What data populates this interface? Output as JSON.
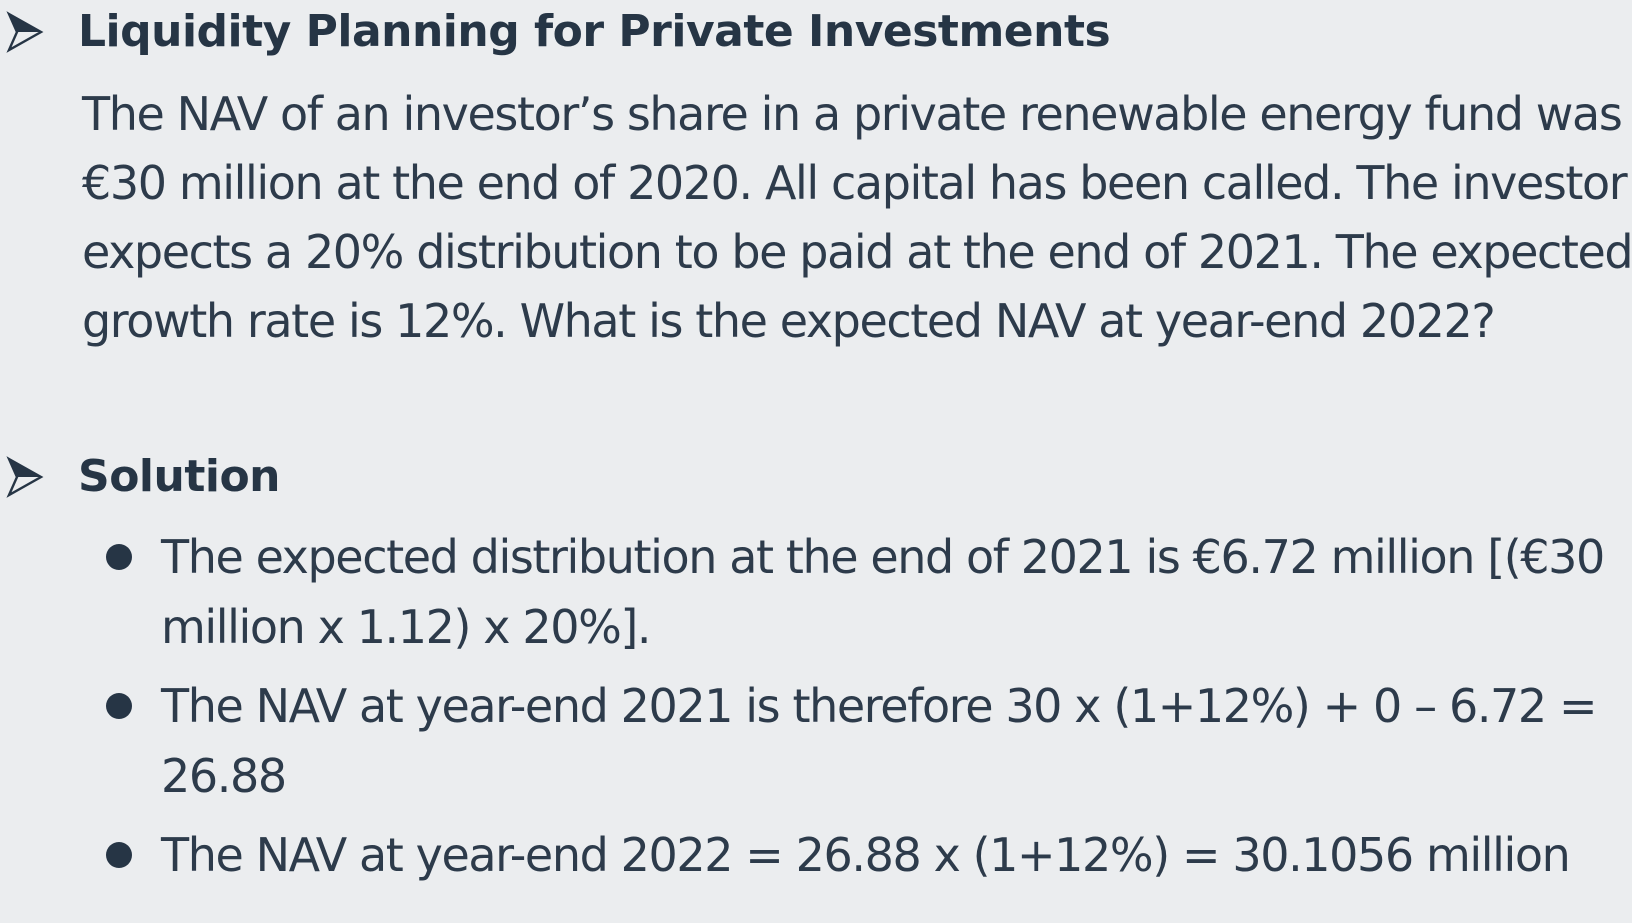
{
  "sections": [
    {
      "heading": "Liquidity Planning for Private Investments",
      "body_lines": [
        "The NAV of an investor’s share in a private renewable energy fund was",
        "€30 million at the end of 2020. All capital has been called. The investor",
        "expects a 20% distribution to be paid at the end of 2021. The expected",
        "growth rate is 12%. What is the expected NAV at year-end 2022?"
      ]
    },
    {
      "heading": "Solution",
      "bullets": [
        {
          "lines": [
            "The expected distribution at the end of 2021 is €6.72 million [(€30",
            "million x 1.12) x 20%]."
          ]
        },
        {
          "lines": [
            "The NAV at year-end 2021 is therefore 30 x (1+12%) + 0 – 6.72 =",
            "26.88"
          ]
        },
        {
          "lines": [
            "The NAV at year-end 2022 = 26.88 x (1+12%) = 30.1056 million"
          ]
        }
      ]
    }
  ],
  "icons": {
    "section_marker": "arrowhead-bullet-icon",
    "list_marker": "filled-circle-bullet-icon"
  },
  "colors": {
    "background": "#ebedef",
    "text": "#2d3b4b",
    "heading": "#263545"
  }
}
